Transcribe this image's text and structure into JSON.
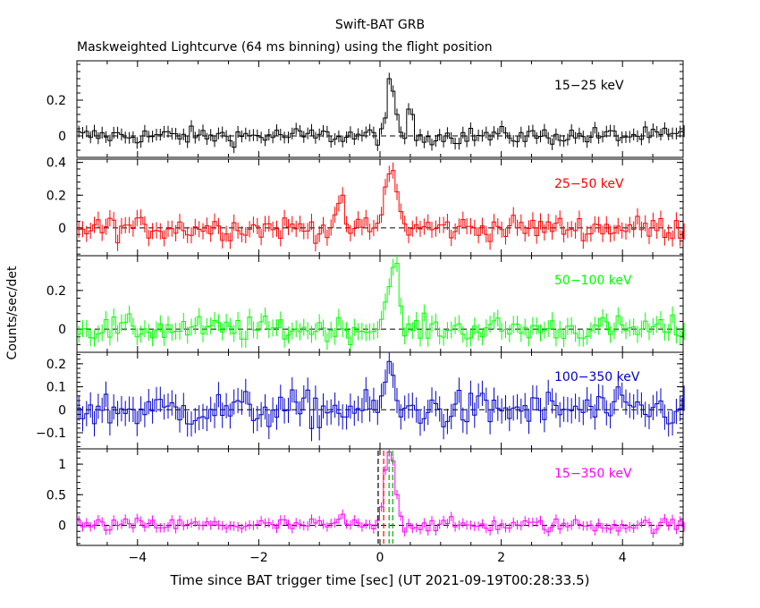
{
  "title": "Swift-BAT GRB",
  "subtitle": "Maskweighted Lightcurve (64 ms binning) using the flight position",
  "chart_data": {
    "type": "line",
    "xlabel": "Time since BAT trigger time [sec] (UT 2021-09-19T00:28:33.5)",
    "ylabel": "Counts/sec/det",
    "xlim": [
      -5,
      5
    ],
    "x_ticks": [
      "−4",
      "−2",
      "0",
      "2",
      "4"
    ],
    "bin_width_s": 0.064,
    "panels": [
      {
        "band": "15−25 keV",
        "color": "#000000",
        "ylim": [
          -0.12,
          0.42
        ],
        "y_ticks": [
          {
            "v": 0,
            "label": "0"
          },
          {
            "v": 0.2,
            "label": "0.2"
          }
        ],
        "pulse": [
          [
            0.0,
            0.04
          ],
          [
            0.064,
            0.1
          ],
          [
            0.128,
            0.32
          ],
          [
            0.192,
            0.25
          ],
          [
            0.256,
            0.12
          ],
          [
            0.32,
            0.02
          ],
          [
            0.448,
            0.15
          ],
          [
            0.512,
            0.12
          ]
        ]
      },
      {
        "band": "25−50 keV",
        "color": "#ff0000",
        "ylim": [
          -0.17,
          0.42
        ],
        "y_ticks": [
          {
            "v": 0,
            "label": "0"
          },
          {
            "v": 0.2,
            "label": "0.2"
          },
          {
            "v": 0.4,
            "label": "0.4"
          }
        ],
        "pulse": [
          [
            -0.768,
            0.08
          ],
          [
            -0.704,
            0.15
          ],
          [
            -0.64,
            0.2
          ],
          [
            0.0,
            0.08
          ],
          [
            0.064,
            0.25
          ],
          [
            0.128,
            0.33
          ],
          [
            0.192,
            0.35
          ],
          [
            0.256,
            0.22
          ],
          [
            0.32,
            0.1
          ]
        ]
      },
      {
        "band": "50−100 keV",
        "color": "#00ff00",
        "ylim": [
          -0.12,
          0.38
        ],
        "y_ticks": [
          {
            "v": 0,
            "label": "0"
          },
          {
            "v": 0.2,
            "label": "0.2"
          }
        ],
        "pulse": [
          [
            0.0,
            0.05
          ],
          [
            0.064,
            0.14
          ],
          [
            0.128,
            0.22
          ],
          [
            0.192,
            0.32
          ],
          [
            0.256,
            0.34
          ],
          [
            0.32,
            0.12
          ]
        ]
      },
      {
        "band": "100−350 keV",
        "color": "#0000cc",
        "ylim": [
          -0.17,
          0.25
        ],
        "y_ticks": [
          {
            "v": -0.1,
            "label": "−0.1"
          },
          {
            "v": 0,
            "label": "0"
          },
          {
            "v": 0.1,
            "label": "0.1"
          },
          {
            "v": 0.2,
            "label": "0.2"
          }
        ],
        "pulse": [
          [
            0.0,
            0.06
          ],
          [
            0.064,
            0.12
          ],
          [
            0.128,
            0.21
          ],
          [
            0.192,
            0.15
          ],
          [
            0.256,
            0.04
          ]
        ]
      },
      {
        "band": "15−350 keV",
        "color": "#ff00ff",
        "ylim": [
          -0.33,
          1.25
        ],
        "y_ticks": [
          {
            "v": 0,
            "label": "0"
          },
          {
            "v": 0.5,
            "label": "0.5"
          },
          {
            "v": 1,
            "label": "1"
          }
        ],
        "pulse": [
          [
            -0.704,
            0.1
          ],
          [
            -0.64,
            0.18
          ],
          [
            0.0,
            0.3
          ],
          [
            0.064,
            0.9
          ],
          [
            0.128,
            1.2
          ],
          [
            0.192,
            1.05
          ],
          [
            0.256,
            0.5
          ],
          [
            0.32,
            0.15
          ]
        ]
      }
    ],
    "markers": [
      {
        "x": -0.03,
        "color": "#000000"
      },
      {
        "x": 0.06,
        "color": "#ff0000"
      },
      {
        "x": 0.15,
        "color": "#00aa00"
      },
      {
        "x": 0.21,
        "color": "#00aa00"
      }
    ]
  }
}
